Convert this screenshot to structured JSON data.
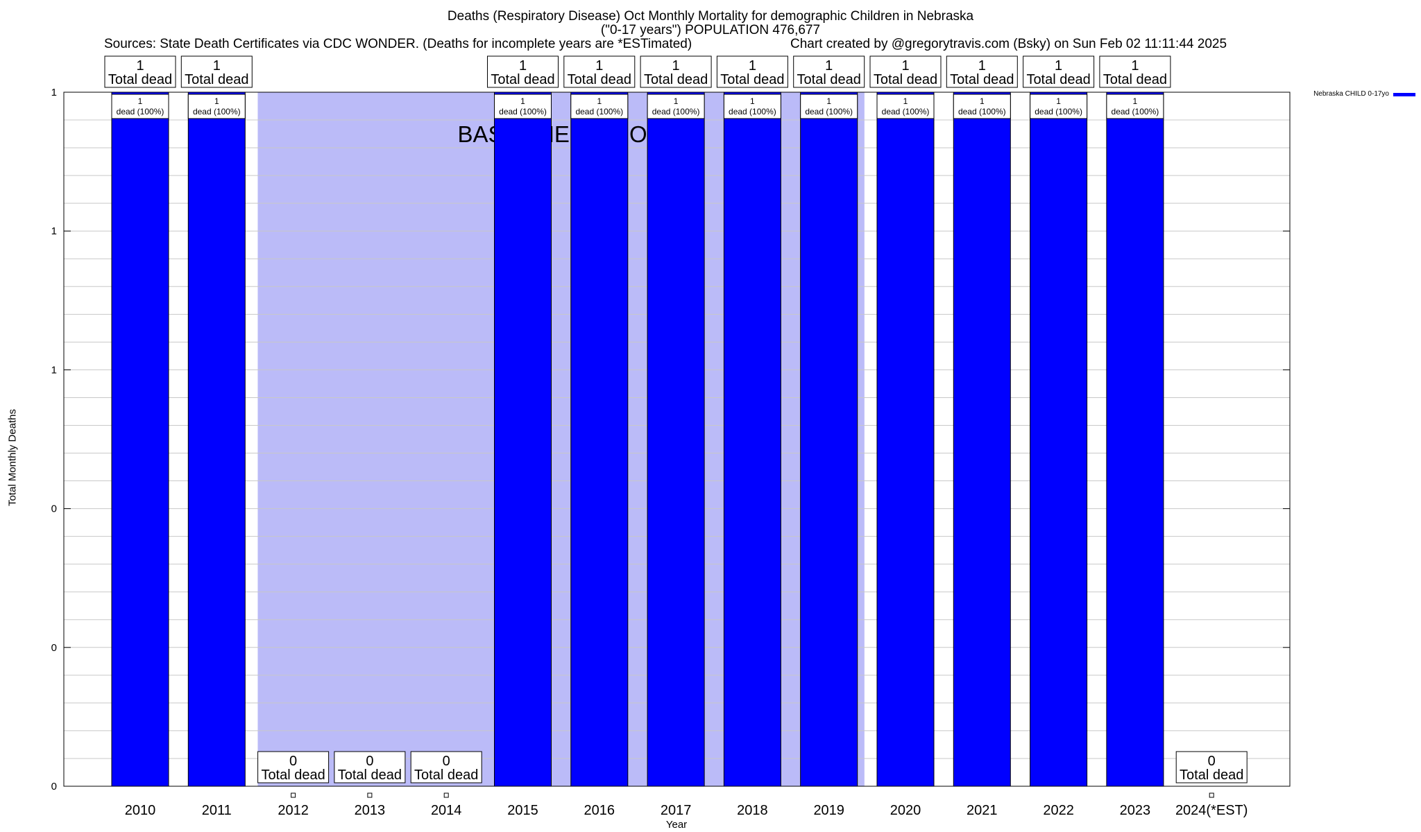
{
  "header": {
    "title_line1": "Deaths (Respiratory Disease) Oct Monthly Mortality for demographic Children in Nebraska",
    "title_line2": "(\"0-17 years\") POPULATION 476,677",
    "sources": "Sources: State Death Certificates via CDC WONDER. (Deaths for incomplete years are *ESTimated)",
    "credit": "Chart created by @gregorytravis.com (Bsky) on Sun Feb 02 11:11:44 2025"
  },
  "chart_data": {
    "type": "bar",
    "title": "Deaths (Respiratory Disease) Oct Monthly Mortality for demographic Children in Nebraska",
    "xlabel": "Year",
    "ylabel": "Total Monthly Deaths",
    "categories": [
      "2010",
      "2011",
      "2012",
      "2013",
      "2014",
      "2015",
      "2016",
      "2017",
      "2018",
      "2019",
      "2020",
      "2021",
      "2022",
      "2023",
      "2024(*EST)"
    ],
    "series": [
      {
        "name": "Nebraska CHILD 0-17yo",
        "color": "#0000ff",
        "values": [
          1,
          1,
          0,
          0,
          0,
          1,
          1,
          1,
          1,
          1,
          1,
          1,
          1,
          1,
          0
        ]
      }
    ],
    "ylim": [
      0,
      1
    ],
    "ytick_labels": [
      "0",
      "0",
      "0",
      "1",
      "1",
      "1"
    ],
    "top_label_numbers": [
      "1",
      "1",
      "0",
      "0",
      "0",
      "1",
      "1",
      "1",
      "1",
      "1",
      "1",
      "1",
      "1",
      "1",
      "0"
    ],
    "top_label_text": "Total dead",
    "bar_inner_labels": [
      "1\ndead (100%)",
      "1\ndead (100%)",
      "",
      "",
      "",
      "1\ndead (100%)",
      "1\ndead (100%)",
      "1\ndead (100%)",
      "1\ndead (100%)",
      "1\ndead (100%)",
      "1\ndead (100%)",
      "1\ndead (100%)",
      "1\ndead (100%)",
      "1\ndead (100%)",
      ""
    ],
    "baseline_period": {
      "from": "2012",
      "to": "2019",
      "label": "BASELINE PERIOD",
      "color": "#bbbbf8"
    },
    "grid": true,
    "legend": "top-right"
  }
}
